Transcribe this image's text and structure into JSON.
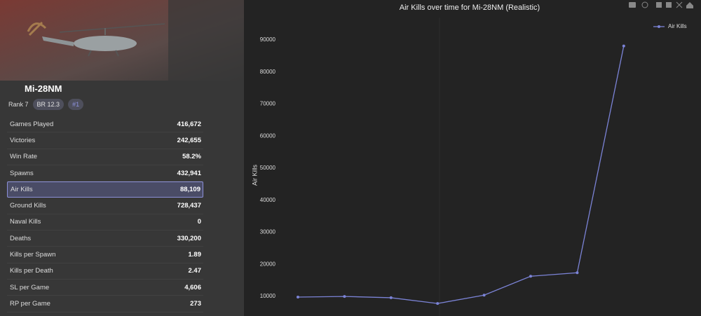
{
  "vehicle": {
    "name": "Mi-28NM",
    "rank": "Rank 7",
    "br": "BR 12.3",
    "position": "#1"
  },
  "stats": [
    {
      "label": "Games Played",
      "value": "416,672"
    },
    {
      "label": "Victories",
      "value": "242,655"
    },
    {
      "label": "Win Rate",
      "value": "58.2%"
    },
    {
      "label": "Spawns",
      "value": "432,941"
    },
    {
      "label": "Air Kills",
      "value": "88,109"
    },
    {
      "label": "Ground Kills",
      "value": "728,437"
    },
    {
      "label": "Naval Kills",
      "value": "0"
    },
    {
      "label": "Deaths",
      "value": "330,200"
    },
    {
      "label": "Kills per Spawn",
      "value": "1.89"
    },
    {
      "label": "Kills per Death",
      "value": "2.47"
    },
    {
      "label": "SL per Game",
      "value": "4,606"
    },
    {
      "label": "RP per Game",
      "value": "273"
    }
  ],
  "chart_data": {
    "type": "line",
    "title": "Air Kills over time for Mi-28NM (Realistic)",
    "y_label": "Air Kills",
    "categories": [
      null,
      null,
      null,
      null,
      null,
      null,
      null,
      null
    ],
    "series": [
      {
        "name": "Air Kills",
        "color": "#7b83d6",
        "values": [
          9800,
          10000,
          9600,
          7800,
          10400,
          16300,
          17400,
          88109
        ]
      }
    ],
    "ylim": [
      3900,
      97000
    ],
    "yticks": [
      10000,
      20000,
      30000,
      40000,
      50000,
      60000,
      70000,
      80000,
      90000
    ],
    "legend": "top-right"
  }
}
